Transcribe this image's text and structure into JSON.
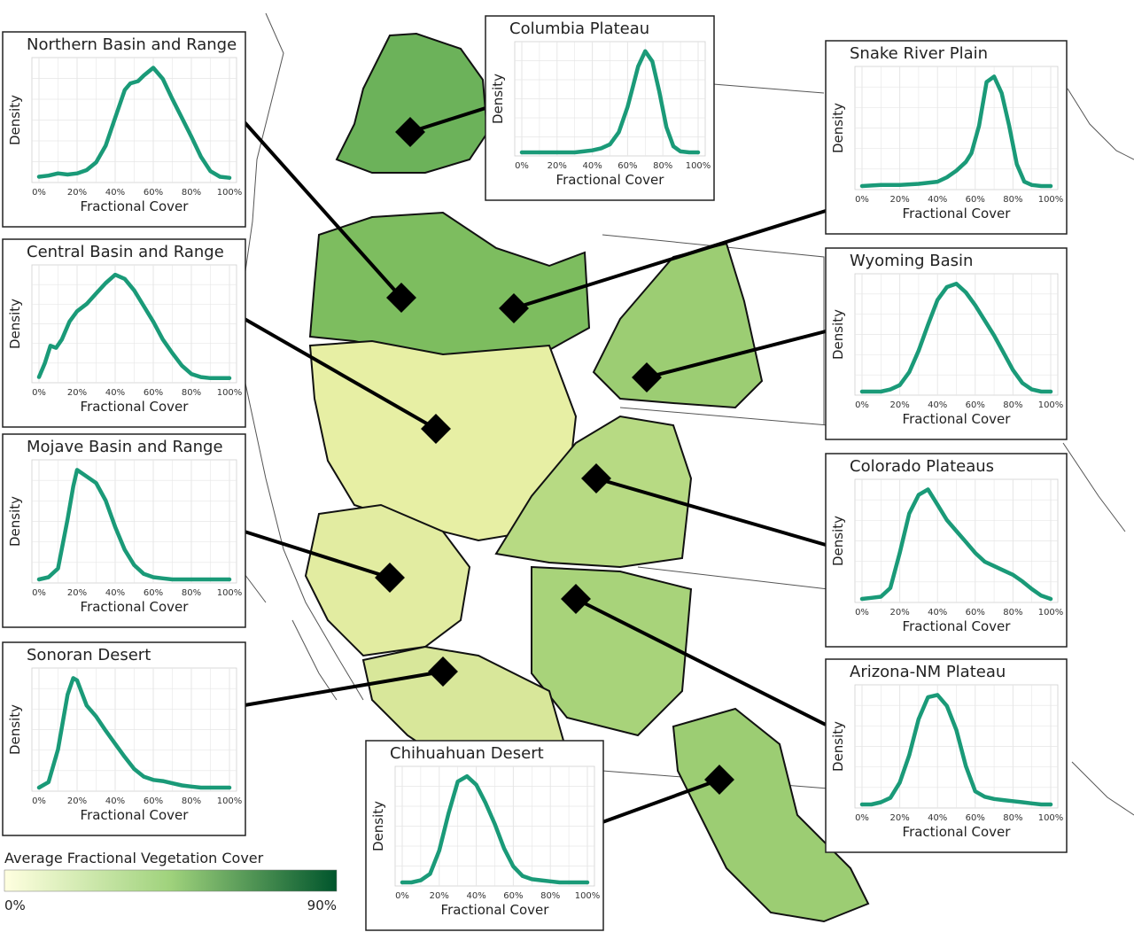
{
  "colors": {
    "curve": "#1a9a78",
    "panel_border": "#222222",
    "grid": "#e6e6e6",
    "region_light": "#eef2a8",
    "region_mid": "#a8d37a",
    "region_dark": "#4f9e45",
    "state_line": "#555555"
  },
  "legend": {
    "title": "Average Fractional Vegetation Cover",
    "min_label": "0%",
    "max_label": "90%",
    "color_low": "#ffffe0",
    "color_mid": "#9fd27c",
    "color_high": "#00552c"
  },
  "chart_data": [
    {
      "type": "line",
      "title": "Northern Basin and Range",
      "xlabel": "Fractional Cover",
      "ylabel": "Density",
      "x_ticks": [
        "0%",
        "20%",
        "40%",
        "60%",
        "80%",
        "100%"
      ],
      "xlim": [
        0,
        100
      ],
      "series": [
        {
          "x": [
            0,
            5,
            10,
            15,
            20,
            25,
            30,
            35,
            40,
            45,
            48,
            52,
            55,
            60,
            65,
            70,
            75,
            80,
            85,
            90,
            95,
            100
          ],
          "y": [
            0.02,
            0.03,
            0.05,
            0.04,
            0.05,
            0.08,
            0.15,
            0.3,
            0.55,
            0.8,
            0.86,
            0.88,
            0.93,
            1.0,
            0.9,
            0.72,
            0.55,
            0.38,
            0.2,
            0.07,
            0.02,
            0.01
          ]
        }
      ]
    },
    {
      "type": "line",
      "title": "Central Basin and Range",
      "xlabel": "Fractional Cover",
      "ylabel": "Density",
      "x_ticks": [
        "0%",
        "20%",
        "40%",
        "60%",
        "80%",
        "100%"
      ],
      "xlim": [
        0,
        100
      ],
      "series": [
        {
          "x": [
            0,
            3,
            6,
            9,
            12,
            16,
            20,
            25,
            30,
            35,
            40,
            45,
            50,
            55,
            60,
            65,
            70,
            75,
            80,
            85,
            90,
            95,
            100
          ],
          "y": [
            0.02,
            0.15,
            0.32,
            0.3,
            0.38,
            0.55,
            0.65,
            0.72,
            0.82,
            0.92,
            1.0,
            0.96,
            0.85,
            0.7,
            0.55,
            0.38,
            0.25,
            0.13,
            0.05,
            0.02,
            0.01,
            0.01,
            0.01
          ]
        }
      ]
    },
    {
      "type": "line",
      "title": "Mojave Basin and Range",
      "xlabel": "Fractional Cover",
      "ylabel": "Density",
      "x_ticks": [
        "0%",
        "20%",
        "40%",
        "60%",
        "80%",
        "100%"
      ],
      "xlim": [
        0,
        100
      ],
      "series": [
        {
          "x": [
            0,
            5,
            10,
            15,
            18,
            20,
            25,
            30,
            35,
            40,
            45,
            50,
            55,
            60,
            65,
            70,
            75,
            80,
            85,
            90,
            95,
            100
          ],
          "y": [
            0.0,
            0.02,
            0.1,
            0.55,
            0.85,
            1.0,
            0.94,
            0.88,
            0.72,
            0.48,
            0.27,
            0.13,
            0.05,
            0.02,
            0.01,
            0.0,
            0.0,
            0.0,
            0.0,
            0.0,
            0.0,
            0.0
          ]
        }
      ]
    },
    {
      "type": "line",
      "title": "Sonoran Desert",
      "xlabel": "Fractional Cover",
      "ylabel": "Density",
      "x_ticks": [
        "0%",
        "20%",
        "40%",
        "60%",
        "80%",
        "100%"
      ],
      "xlim": [
        0,
        100
      ],
      "series": [
        {
          "x": [
            0,
            5,
            10,
            15,
            18,
            20,
            25,
            30,
            35,
            40,
            45,
            50,
            55,
            60,
            65,
            70,
            75,
            80,
            85,
            90,
            95,
            100
          ],
          "y": [
            0.0,
            0.05,
            0.35,
            0.85,
            1.0,
            0.98,
            0.75,
            0.65,
            0.52,
            0.4,
            0.28,
            0.17,
            0.1,
            0.07,
            0.06,
            0.04,
            0.02,
            0.01,
            0.0,
            0.0,
            0.0,
            0.0
          ]
        }
      ]
    },
    {
      "type": "line",
      "title": "Columbia Plateau",
      "xlabel": "Fractional Cover",
      "ylabel": "Density",
      "x_ticks": [
        "0%",
        "20%",
        "40%",
        "60%",
        "80%",
        "100%"
      ],
      "xlim": [
        0,
        100
      ],
      "series": [
        {
          "x": [
            0,
            10,
            20,
            30,
            35,
            40,
            45,
            50,
            55,
            60,
            63,
            66,
            70,
            74,
            78,
            82,
            86,
            90,
            95,
            100
          ],
          "y": [
            0.0,
            0.0,
            0.0,
            0.0,
            0.01,
            0.02,
            0.04,
            0.08,
            0.2,
            0.45,
            0.65,
            0.85,
            1.0,
            0.9,
            0.6,
            0.25,
            0.06,
            0.01,
            0.0,
            0.0
          ]
        }
      ]
    },
    {
      "type": "line",
      "title": "Snake River Plain",
      "xlabel": "Fractional Cover",
      "ylabel": "Density",
      "x_ticks": [
        "0%",
        "20%",
        "40%",
        "60%",
        "80%",
        "100%"
      ],
      "xlim": [
        0,
        100
      ],
      "series": [
        {
          "x": [
            0,
            10,
            20,
            30,
            40,
            45,
            50,
            55,
            58,
            62,
            66,
            70,
            74,
            78,
            82,
            86,
            90,
            95,
            100
          ],
          "y": [
            0.0,
            0.01,
            0.01,
            0.02,
            0.04,
            0.08,
            0.14,
            0.22,
            0.3,
            0.55,
            0.95,
            1.0,
            0.85,
            0.55,
            0.2,
            0.04,
            0.01,
            0.0,
            0.0
          ]
        }
      ]
    },
    {
      "type": "line",
      "title": "Wyoming Basin",
      "xlabel": "Fractional Cover",
      "ylabel": "Density",
      "x_ticks": [
        "0%",
        "20%",
        "40%",
        "60%",
        "80%",
        "100%"
      ],
      "xlim": [
        0,
        100
      ],
      "series": [
        {
          "x": [
            0,
            10,
            15,
            20,
            25,
            30,
            35,
            40,
            45,
            50,
            55,
            60,
            65,
            70,
            75,
            80,
            85,
            90,
            95,
            100
          ],
          "y": [
            0.0,
            0.0,
            0.02,
            0.06,
            0.18,
            0.38,
            0.62,
            0.85,
            0.97,
            1.0,
            0.92,
            0.8,
            0.66,
            0.52,
            0.36,
            0.2,
            0.08,
            0.02,
            0.0,
            0.0
          ]
        }
      ]
    },
    {
      "type": "line",
      "title": "Colorado Plateaus",
      "xlabel": "Fractional Cover",
      "ylabel": "Density",
      "x_ticks": [
        "0%",
        "20%",
        "40%",
        "60%",
        "80%",
        "100%"
      ],
      "xlim": [
        0,
        100
      ],
      "series": [
        {
          "x": [
            0,
            5,
            10,
            15,
            20,
            25,
            30,
            35,
            40,
            45,
            50,
            55,
            60,
            65,
            70,
            75,
            80,
            85,
            90,
            95,
            100
          ],
          "y": [
            0.0,
            0.01,
            0.02,
            0.1,
            0.42,
            0.78,
            0.95,
            1.0,
            0.86,
            0.72,
            0.62,
            0.52,
            0.42,
            0.34,
            0.3,
            0.26,
            0.22,
            0.16,
            0.09,
            0.03,
            0.0
          ]
        }
      ]
    },
    {
      "type": "line",
      "title": "Arizona-NM Plateau",
      "xlabel": "Fractional Cover",
      "ylabel": "Density",
      "x_ticks": [
        "0%",
        "20%",
        "40%",
        "60%",
        "80%",
        "100%"
      ],
      "xlim": [
        0,
        100
      ],
      "series": [
        {
          "x": [
            0,
            5,
            10,
            15,
            20,
            25,
            30,
            35,
            40,
            45,
            50,
            55,
            60,
            65,
            70,
            75,
            80,
            85,
            90,
            95,
            100
          ],
          "y": [
            0.0,
            0.0,
            0.02,
            0.06,
            0.2,
            0.45,
            0.78,
            0.98,
            1.0,
            0.9,
            0.68,
            0.35,
            0.12,
            0.07,
            0.05,
            0.04,
            0.03,
            0.02,
            0.01,
            0.0,
            0.0
          ]
        }
      ]
    },
    {
      "type": "line",
      "title": "Chihuahuan Desert",
      "xlabel": "Fractional Cover",
      "ylabel": "Density",
      "x_ticks": [
        "0%",
        "20%",
        "40%",
        "60%",
        "80%",
        "100%"
      ],
      "xlim": [
        0,
        100
      ],
      "series": [
        {
          "x": [
            0,
            5,
            10,
            15,
            20,
            25,
            30,
            35,
            40,
            45,
            50,
            55,
            60,
            65,
            70,
            75,
            80,
            85,
            90,
            95,
            100
          ],
          "y": [
            0.0,
            0.0,
            0.02,
            0.08,
            0.3,
            0.65,
            0.95,
            1.0,
            0.92,
            0.75,
            0.55,
            0.32,
            0.15,
            0.06,
            0.03,
            0.02,
            0.01,
            0.0,
            0.0,
            0.0,
            0.0
          ]
        }
      ]
    }
  ]
}
